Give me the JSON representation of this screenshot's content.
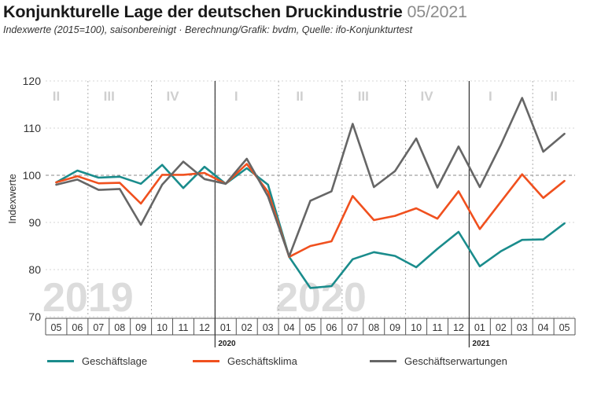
{
  "header": {
    "title": "Konjunkturelle Lage der deutschen Druckindustrie",
    "title_date": "05/2021",
    "subtitle": "Indexwerte (2015=100), saisonbereinigt · Berechnung/Grafik: bvdm, Quelle: ifo-Konjunkturtest"
  },
  "chart_data": {
    "type": "line",
    "ylabel": "Indexwerte",
    "ylim": [
      70,
      120
    ],
    "yticks": [
      70,
      80,
      90,
      100,
      110,
      120
    ],
    "reference_line": 100,
    "x": [
      "05",
      "06",
      "07",
      "08",
      "09",
      "10",
      "11",
      "12",
      "01",
      "02",
      "03",
      "04",
      "05",
      "06",
      "07",
      "08",
      "09",
      "10",
      "11",
      "12",
      "01",
      "02",
      "03",
      "04",
      "05"
    ],
    "year_markers": [
      {
        "label": "2020",
        "index": 8
      },
      {
        "label": "2021",
        "index": 20
      }
    ],
    "quarters": [
      {
        "label": "II",
        "index": 0
      },
      {
        "label": "III",
        "index": 2.5
      },
      {
        "label": "IV",
        "index": 5.5
      },
      {
        "label": "I",
        "index": 8.5
      },
      {
        "label": "II",
        "index": 11.5
      },
      {
        "label": "III",
        "index": 14.5
      },
      {
        "label": "IV",
        "index": 17.5
      },
      {
        "label": "I",
        "index": 20.5
      },
      {
        "label": "II",
        "index": 23.5
      }
    ],
    "quarter_boundaries": [
      1.5,
      4.5,
      7.5,
      10.5,
      13.5,
      16.5,
      19.5,
      22.5
    ],
    "watermarks": [
      {
        "label": "2019",
        "index": 1.5
      },
      {
        "label": "2020",
        "index": 12.5
      }
    ],
    "series": [
      {
        "name": "Geschäftslage",
        "color": "#1a8c8c",
        "values": [
          98.5,
          101.0,
          99.5,
          99.7,
          98.2,
          102.2,
          97.3,
          101.8,
          98.2,
          101.5,
          98.0,
          82.7,
          76.1,
          76.5,
          82.2,
          83.7,
          82.9,
          80.5,
          84.4,
          88.0,
          80.7,
          83.9,
          86.3,
          86.4,
          89.8
        ]
      },
      {
        "name": "Geschäftsklima",
        "color": "#f0501e",
        "values": [
          98.5,
          99.8,
          98.3,
          98.4,
          94.0,
          100.1,
          100.1,
          100.5,
          98.2,
          102.4,
          96.5,
          82.7,
          85.0,
          86.0,
          95.6,
          90.5,
          91.4,
          93.0,
          90.8,
          96.6,
          88.6,
          94.4,
          100.2,
          95.2,
          98.8
        ]
      },
      {
        "name": "Geschäftserwartungen",
        "color": "#666666",
        "values": [
          98.0,
          99.1,
          96.9,
          97.1,
          89.5,
          98.0,
          102.9,
          99.2,
          98.2,
          103.5,
          95.5,
          82.8,
          94.6,
          96.6,
          110.9,
          97.5,
          100.9,
          107.8,
          97.4,
          106.1,
          97.5,
          106.5,
          116.4,
          105.0,
          108.8
        ]
      }
    ]
  },
  "legend": {
    "items": [
      {
        "label": "Geschäftslage",
        "color": "#1a8c8c"
      },
      {
        "label": "Geschäftsklima",
        "color": "#f0501e"
      },
      {
        "label": "Geschäftserwartungen",
        "color": "#666666"
      }
    ]
  }
}
